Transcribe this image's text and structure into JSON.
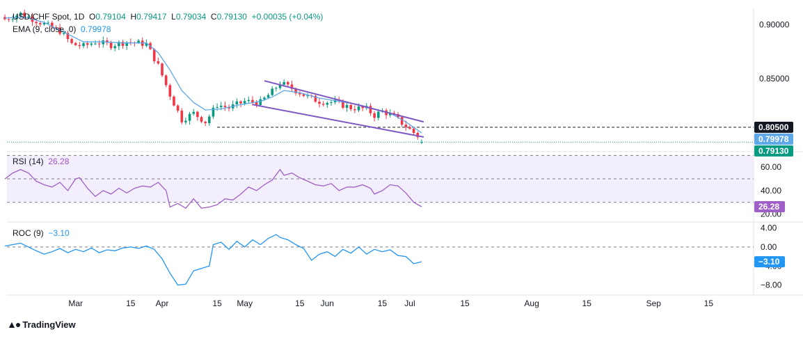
{
  "header": {
    "symbol_line": "USD/CHF Spot, 1D",
    "open_label": "O",
    "open": "0.79104",
    "high_label": "H",
    "high": "0.79417",
    "low_label": "L",
    "low": "0.79034",
    "close_label": "C",
    "close": "0.79130",
    "change": "+0.00035 (+0.04%)",
    "ema_label": "EMA (9, close, 0)",
    "ema_value": "0.79978"
  },
  "rsi_legend": {
    "label": "RSI (14)",
    "value": "26.28"
  },
  "roc_legend": {
    "label": "ROC (9)",
    "value": "−3.10"
  },
  "branding": {
    "name": "TradingView",
    "icon": "tradingview-logo-icon"
  },
  "colors": {
    "up": "#089981",
    "down": "#f23645",
    "ema": "#5fa8e8",
    "channel": "#7e57c2",
    "rsi": "#a05fc8",
    "rsi_band": "#f3eefb",
    "roc": "#2196f3",
    "close_badge": "#089981",
    "level_badge": "#131722",
    "ema_badge": "#5fa8e8"
  },
  "chart_data": [
    {
      "type": "candlestick",
      "title": "USD/CHF Spot, 1D",
      "x_tick_labels": [
        "Mar",
        "15",
        "Apr",
        "15",
        "May",
        "15",
        "Jun",
        "15",
        "Jul",
        "15",
        "Aug",
        "15",
        "Sep",
        "15"
      ],
      "ylim": [
        0.785,
        0.915
      ],
      "y_tick_labels": [
        "0.90000",
        "0.85000"
      ],
      "y_ticks": [
        0.9,
        0.85
      ],
      "price_badges": [
        {
          "name": "level",
          "label": "0.80500",
          "value": 0.805
        },
        {
          "name": "ema",
          "label": "0.79978",
          "value": 0.79978
        },
        {
          "name": "close",
          "label": "0.79130",
          "value": 0.7913
        }
      ],
      "support_level": 0.805,
      "close": 0.7913,
      "ohlc_anchors_close": [
        [
          0,
          0.905
        ],
        [
          4,
          0.91
        ],
        [
          9,
          0.902
        ],
        [
          14,
          0.894
        ],
        [
          17,
          0.882
        ],
        [
          20,
          0.88
        ],
        [
          23,
          0.884
        ],
        [
          27,
          0.881
        ],
        [
          31,
          0.884
        ],
        [
          36,
          0.882
        ],
        [
          39,
          0.862
        ],
        [
          42,
          0.835
        ],
        [
          45,
          0.812
        ],
        [
          48,
          0.818
        ],
        [
          51,
          0.81
        ],
        [
          54,
          0.826
        ],
        [
          57,
          0.823
        ],
        [
          61,
          0.829
        ],
        [
          65,
          0.828
        ],
        [
          68,
          0.838
        ],
        [
          70,
          0.846
        ],
        [
          73,
          0.841
        ],
        [
          77,
          0.833
        ],
        [
          80,
          0.829
        ],
        [
          84,
          0.828
        ],
        [
          88,
          0.823
        ],
        [
          92,
          0.822
        ],
        [
          94,
          0.816
        ],
        [
          96,
          0.82
        ],
        [
          99,
          0.815
        ],
        [
          102,
          0.806
        ],
        [
          105,
          0.797
        ],
        [
          106,
          0.7913
        ]
      ],
      "ema": [
        [
          0,
          0.906
        ],
        [
          5,
          0.907
        ],
        [
          10,
          0.902
        ],
        [
          15,
          0.893
        ],
        [
          20,
          0.884
        ],
        [
          25,
          0.884
        ],
        [
          30,
          0.883
        ],
        [
          36,
          0.883
        ],
        [
          39,
          0.874
        ],
        [
          42,
          0.858
        ],
        [
          45,
          0.839
        ],
        [
          48,
          0.828
        ],
        [
          51,
          0.821
        ],
        [
          55,
          0.822
        ],
        [
          60,
          0.826
        ],
        [
          65,
          0.829
        ],
        [
          68,
          0.833
        ],
        [
          71,
          0.839
        ],
        [
          75,
          0.837
        ],
        [
          80,
          0.832
        ],
        [
          85,
          0.829
        ],
        [
          90,
          0.826
        ],
        [
          94,
          0.822
        ],
        [
          98,
          0.818
        ],
        [
          102,
          0.81
        ],
        [
          106,
          0.79978
        ]
      ],
      "channel_upper": [
        [
          66,
          0.848
        ],
        [
          106,
          0.81
        ]
      ],
      "channel_lower": [
        [
          63,
          0.826
        ],
        [
          106,
          0.796
        ]
      ],
      "series": [
        {
          "name": "EMA (9, close, 0)"
        }
      ]
    },
    {
      "type": "line",
      "title": "RSI (14)",
      "ylim": [
        15,
        72
      ],
      "y_tick_labels": [
        "60.00",
        "40.00",
        "20.00"
      ],
      "y_ticks": [
        60,
        40,
        20
      ],
      "bands": [
        70,
        50,
        30
      ],
      "last": 26.28,
      "last_label": "26.28",
      "values": [
        [
          0,
          50
        ],
        [
          2,
          55
        ],
        [
          4,
          58
        ],
        [
          6,
          55
        ],
        [
          8,
          48
        ],
        [
          10,
          45
        ],
        [
          12,
          43
        ],
        [
          14,
          47
        ],
        [
          16,
          40
        ],
        [
          18,
          50
        ],
        [
          19,
          51
        ],
        [
          21,
          42
        ],
        [
          23,
          35
        ],
        [
          25,
          40
        ],
        [
          27,
          37
        ],
        [
          29,
          42
        ],
        [
          31,
          38
        ],
        [
          33,
          42
        ],
        [
          35,
          44
        ],
        [
          37,
          43
        ],
        [
          39,
          47
        ],
        [
          41,
          40
        ],
        [
          42,
          26
        ],
        [
          44,
          29
        ],
        [
          46,
          25
        ],
        [
          48,
          33
        ],
        [
          50,
          25
        ],
        [
          52,
          26
        ],
        [
          54,
          28
        ],
        [
          56,
          33
        ],
        [
          58,
          32
        ],
        [
          60,
          37
        ],
        [
          62,
          43
        ],
        [
          64,
          40
        ],
        [
          66,
          45
        ],
        [
          68,
          49
        ],
        [
          70,
          58
        ],
        [
          71,
          53
        ],
        [
          73,
          55
        ],
        [
          75,
          51
        ],
        [
          77,
          48
        ],
        [
          79,
          45
        ],
        [
          81,
          44
        ],
        [
          83,
          46
        ],
        [
          85,
          40
        ],
        [
          87,
          43
        ],
        [
          89,
          43
        ],
        [
          91,
          45
        ],
        [
          93,
          42
        ],
        [
          94,
          37
        ],
        [
          96,
          40
        ],
        [
          98,
          45
        ],
        [
          100,
          44
        ],
        [
          102,
          38
        ],
        [
          104,
          30
        ],
        [
          106,
          26.28
        ]
      ]
    },
    {
      "type": "line",
      "title": "ROC (9)",
      "ylim": [
        -9.5,
        4.8
      ],
      "y_tick_labels": [
        "4.00",
        "0.00",
        "−4.00",
        "−8.00"
      ],
      "y_ticks": [
        4,
        0,
        -4,
        -8
      ],
      "zero_line": 0,
      "last": -3.1,
      "last_label": "−3.10",
      "values": [
        [
          0,
          0.2
        ],
        [
          2,
          0.5
        ],
        [
          4,
          0.8
        ],
        [
          6,
          0.0
        ],
        [
          8,
          -0.8
        ],
        [
          10,
          -1.5
        ],
        [
          12,
          -1.0
        ],
        [
          14,
          -0.3
        ],
        [
          16,
          -1.2
        ],
        [
          18,
          -0.5
        ],
        [
          20,
          -1.0
        ],
        [
          22,
          -0.2
        ],
        [
          24,
          -1.2
        ],
        [
          26,
          -0.6
        ],
        [
          28,
          -0.8
        ],
        [
          30,
          -0.2
        ],
        [
          32,
          0.0
        ],
        [
          34,
          -0.3
        ],
        [
          36,
          0.2
        ],
        [
          38,
          -0.5
        ],
        [
          40,
          -2.5
        ],
        [
          42,
          -5.5
        ],
        [
          44,
          -8.0
        ],
        [
          46,
          -7.8
        ],
        [
          48,
          -5.0
        ],
        [
          50,
          -4.5
        ],
        [
          52,
          -4.0
        ],
        [
          53,
          0.5
        ],
        [
          55,
          1.0
        ],
        [
          57,
          -0.5
        ],
        [
          59,
          1.2
        ],
        [
          61,
          0.0
        ],
        [
          63,
          1.5
        ],
        [
          65,
          0.5
        ],
        [
          67,
          1.8
        ],
        [
          69,
          2.6
        ],
        [
          70,
          2.0
        ],
        [
          72,
          1.5
        ],
        [
          74,
          0.5
        ],
        [
          76,
          -0.3
        ],
        [
          78,
          -2.8
        ],
        [
          80,
          -1.5
        ],
        [
          82,
          -1.0
        ],
        [
          84,
          -2.0
        ],
        [
          86,
          -0.5
        ],
        [
          88,
          -1.3
        ],
        [
          90,
          0.0
        ],
        [
          92,
          -1.5
        ],
        [
          94,
          -0.5
        ],
        [
          96,
          -1.0
        ],
        [
          98,
          -0.6
        ],
        [
          100,
          -1.8
        ],
        [
          102,
          -2.0
        ],
        [
          104,
          -3.5
        ],
        [
          106,
          -3.1
        ]
      ]
    }
  ]
}
